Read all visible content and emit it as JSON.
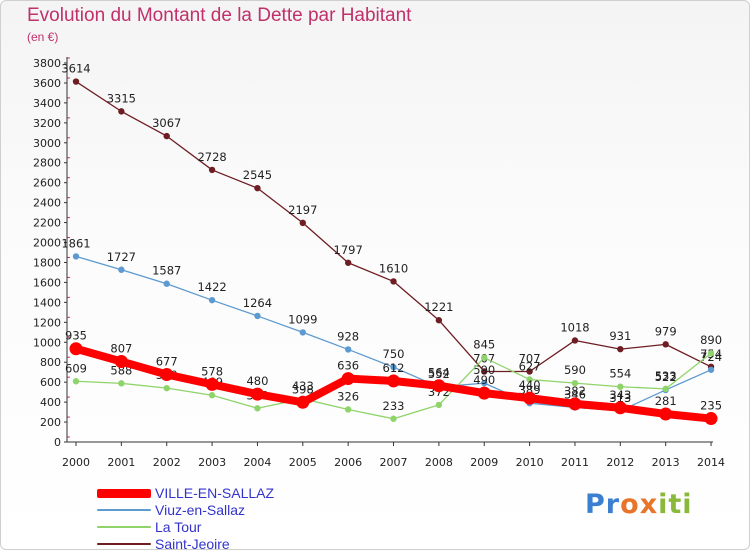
{
  "header": {
    "title": "Evolution du Montant de la Dette par Habitant",
    "subtitle": "(en €)"
  },
  "logo": {
    "letters": [
      "P",
      "r",
      "o",
      "x",
      "i",
      "t",
      "i"
    ],
    "colors": [
      "#3b7fd0",
      "#3b7fd0",
      "#e8742a",
      "#e8742a",
      "#8ab83a",
      "#8ab83a",
      "#8ab83a"
    ]
  },
  "chart_data": {
    "type": "line",
    "title": "Evolution du Montant de la Dette par Habitant",
    "subtitle": "(en €)",
    "xlabel": "",
    "ylabel": "",
    "x": [
      "2000",
      "2001",
      "2002",
      "2003",
      "2004",
      "2005",
      "2006",
      "2007",
      "2008",
      "2009",
      "2010",
      "2011",
      "2012",
      "2013",
      "2014"
    ],
    "ylim": [
      0,
      3800
    ],
    "yticks": [
      0,
      200,
      400,
      600,
      800,
      1000,
      1200,
      1400,
      1600,
      1800,
      2000,
      2200,
      2400,
      2600,
      2800,
      3000,
      3200,
      3400,
      3600,
      3800
    ],
    "grid": false,
    "legend_position": "bottom-left",
    "series": [
      {
        "name": "Saint-Jeoire",
        "color": "#6e1d23",
        "values": [
          3614,
          3315,
          3067,
          2728,
          2545,
          2197,
          1797,
          1610,
          1221,
          707,
          707,
          1018,
          931,
          979,
          754
        ]
      },
      {
        "name": "Viuz-en-Sallaz",
        "color": "#5d9ad0",
        "values": [
          1861,
          1727,
          1587,
          1422,
          1264,
          1099,
          928,
          750,
          552,
          590,
          389,
          346,
          313,
          522,
          724
        ]
      },
      {
        "name": "La Tour",
        "color": "#8fd46a",
        "values": [
          609,
          588,
          540,
          469,
          338,
          433,
          326,
          233,
          372,
          845,
          627,
          590,
          554,
          533,
          890
        ]
      },
      {
        "name": "VILLE-EN-SALLAZ",
        "color": "#ff0000",
        "values": [
          935,
          807,
          677,
          578,
          480,
          398,
          636,
          612,
          564,
          490,
          440,
          382,
          343,
          281,
          235
        ]
      }
    ]
  }
}
